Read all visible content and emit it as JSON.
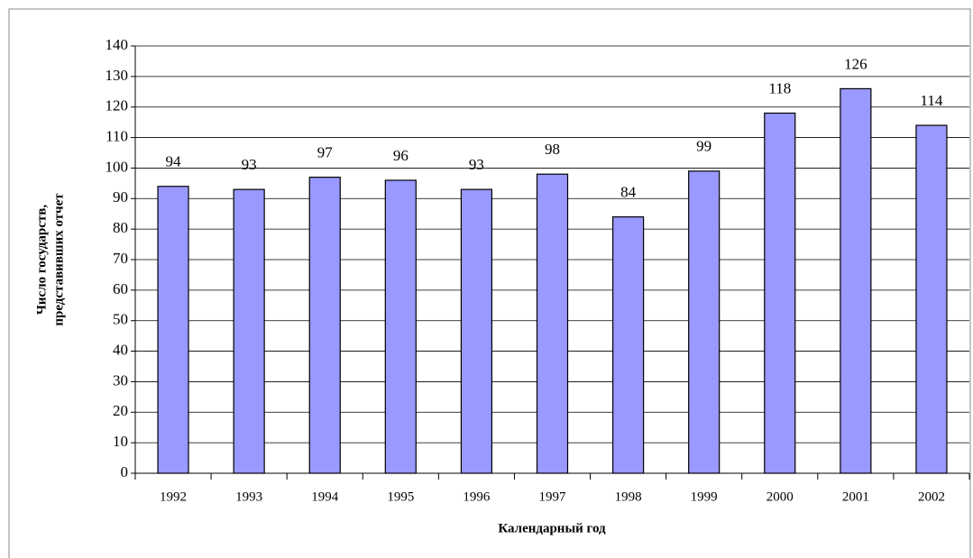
{
  "chart_data": {
    "type": "bar",
    "xlabel": "Календарный год",
    "ylabel": [
      "Число государств,",
      "представивших отчет"
    ],
    "categories": [
      "1992",
      "1993",
      "1994",
      "1995",
      "1996",
      "1997",
      "1998",
      "1999",
      "2000",
      "2001",
      "2002"
    ],
    "values": [
      94,
      93,
      97,
      96,
      93,
      98,
      84,
      99,
      118,
      126,
      114
    ],
    "color": "#9999ff",
    "ylim": [
      0,
      140
    ],
    "yticks": [
      0,
      10,
      20,
      30,
      40,
      50,
      60,
      70,
      80,
      90,
      100,
      110,
      120,
      130,
      140
    ],
    "grid": true
  }
}
